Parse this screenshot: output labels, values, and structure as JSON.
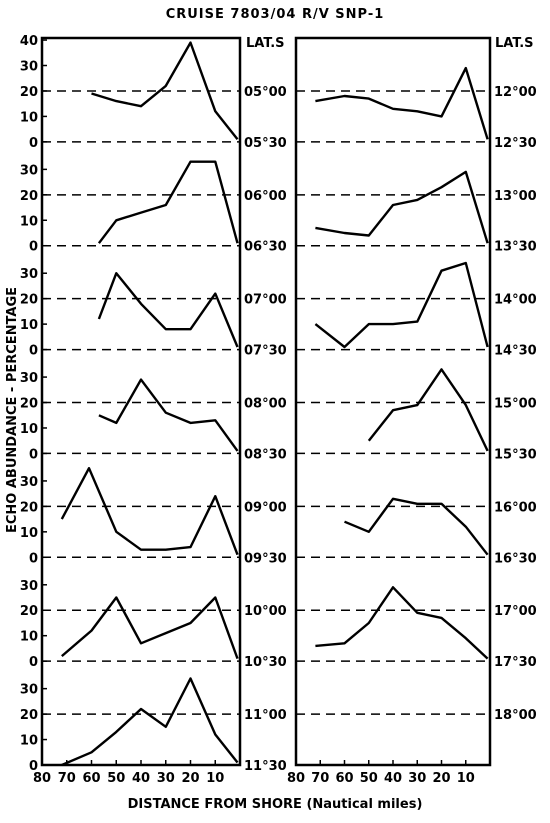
{
  "title": "CRUISE 7803/04 R/V SNP-1",
  "ylabel": "ECHO ABUNDANCE - PERCENTAGE",
  "xlabel": "DISTANCE FROM SHORE (Nautical miles)",
  "lat_header": "LAT.S",
  "y_ticks_top": [
    "40",
    "30",
    "20",
    "10",
    "0"
  ],
  "y_ticks": [
    "30",
    "20",
    "10",
    "0"
  ],
  "x_ticks": [
    "80",
    "70",
    "60",
    "50",
    "40",
    "30",
    "20",
    "10"
  ],
  "colors": {
    "line": "#000000",
    "background": "#ffffff"
  },
  "chart_data": {
    "type": "line",
    "x_unit": "Nautical miles from shore",
    "y_unit": "percentage",
    "xlim": [
      80,
      0
    ],
    "ylim": [
      0,
      40
    ],
    "reference_line_y": 20,
    "grid": false,
    "left_panel": [
      {
        "name": "05°00",
        "lat_mid": "05°00",
        "lat_bottom": "05°30",
        "x": [
          60,
          50,
          40,
          30,
          20,
          10,
          1
        ],
        "y": [
          19,
          16,
          14,
          22,
          39,
          12,
          1
        ]
      },
      {
        "name": "06°00",
        "lat_mid": "06°00",
        "lat_bottom": "06°30",
        "x": [
          57,
          50,
          40,
          30,
          20,
          10,
          1
        ],
        "y": [
          1,
          10,
          13,
          16,
          33,
          33,
          1
        ]
      },
      {
        "name": "07°00",
        "lat_mid": "07°00",
        "lat_bottom": "07°30",
        "x": [
          57,
          50,
          40,
          30,
          20,
          10,
          1
        ],
        "y": [
          12,
          30,
          18,
          8,
          8,
          22,
          1
        ]
      },
      {
        "name": "08°00",
        "lat_mid": "08°00",
        "lat_bottom": "08°30",
        "x": [
          57,
          50,
          40,
          30,
          20,
          10,
          1
        ],
        "y": [
          15,
          12,
          29,
          16,
          12,
          13,
          1
        ]
      },
      {
        "name": "09°00",
        "lat_mid": "09°00",
        "lat_bottom": "09°30",
        "x": [
          72,
          61,
          50,
          40,
          30,
          20,
          10,
          1
        ],
        "y": [
          15,
          35,
          10,
          3,
          3,
          4,
          24,
          1
        ]
      },
      {
        "name": "10°00",
        "lat_mid": "10°00",
        "lat_bottom": "10°30",
        "x": [
          72,
          60,
          50,
          40,
          30,
          20,
          10,
          1
        ],
        "y": [
          2,
          12,
          25,
          7,
          11,
          15,
          25,
          1
        ]
      },
      {
        "name": "11°00",
        "lat_mid": "11°00",
        "lat_bottom": "11°30",
        "x": [
          72,
          60,
          50,
          40,
          30,
          20,
          10,
          1
        ],
        "y": [
          0,
          5,
          13,
          22,
          15,
          34,
          12,
          1
        ]
      }
    ],
    "right_panel": [
      {
        "name": "12°00",
        "lat_mid": "12°00",
        "lat_bottom": "12°30",
        "x": [
          72,
          60,
          50,
          40,
          30,
          20,
          10,
          1
        ],
        "y": [
          16,
          18,
          17,
          13,
          12,
          10,
          29,
          1
        ]
      },
      {
        "name": "13°00",
        "lat_mid": "13°00",
        "lat_bottom": "13°30",
        "x": [
          72,
          60,
          50,
          40,
          30,
          20,
          10,
          1
        ],
        "y": [
          7,
          5,
          4,
          16,
          18,
          23,
          29,
          1
        ]
      },
      {
        "name": "14°00",
        "lat_mid": "14°00",
        "lat_bottom": "14°30",
        "x": [
          72,
          60,
          50,
          40,
          30,
          20,
          10,
          1
        ],
        "y": [
          10,
          1,
          10,
          10,
          11,
          31,
          34,
          1
        ]
      },
      {
        "name": "15°00",
        "lat_mid": "15°00",
        "lat_bottom": "15°30",
        "x": [
          50,
          40,
          30,
          20,
          10,
          1
        ],
        "y": [
          5,
          17,
          19,
          33,
          19,
          1
        ]
      },
      {
        "name": "16°00",
        "lat_mid": "16°00",
        "lat_bottom": "16°30",
        "x": [
          60,
          50,
          40,
          30,
          20,
          10,
          1
        ],
        "y": [
          14,
          10,
          23,
          21,
          21,
          12,
          1
        ]
      },
      {
        "name": "17°00",
        "lat_mid": "17°00",
        "lat_bottom": "17°30",
        "x": [
          72,
          60,
          50,
          40,
          30,
          20,
          10,
          1
        ],
        "y": [
          6,
          7,
          15,
          29,
          19,
          17,
          9,
          1
        ]
      },
      {
        "name": "18°00",
        "lat_mid": "18°00",
        "lat_bottom": "",
        "x": [],
        "y": []
      }
    ]
  }
}
